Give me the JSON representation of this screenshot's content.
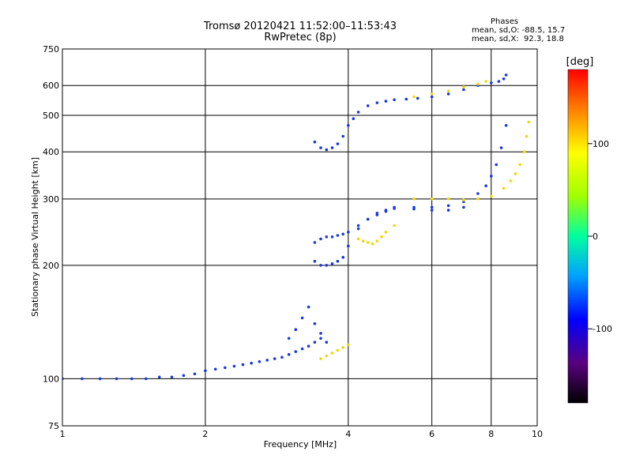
{
  "header": {
    "title_line1": "Tromsø 20120421 11:52:00–11:53:43",
    "title_line2": "RwPretec (8p)"
  },
  "phases": {
    "label": "Phases",
    "line_o": "mean, sd,O: -88.5, 15.7",
    "line_x": "mean, sd,X:  92.3, 18.8"
  },
  "chart_data": {
    "type": "scatter",
    "xlabel": "Frequency [MHz]",
    "ylabel": "Stationary phase Virtual Height [km]",
    "xscale": "log",
    "yscale": "log",
    "xlim": [
      1,
      10
    ],
    "ylim": [
      75,
      750
    ],
    "xticks": [
      1,
      2,
      4,
      6,
      8,
      10
    ],
    "yticks": [
      75,
      100,
      200,
      300,
      400,
      500,
      600,
      750
    ],
    "grid": true,
    "colorbar": {
      "label": "[deg]",
      "range": [
        -180,
        180
      ],
      "ticks": [
        100,
        0,
        -100
      ]
    },
    "series": [
      {
        "phase_deg": -100,
        "x": [
          1.0,
          1.1,
          1.2,
          1.3,
          1.4,
          1.5,
          1.6,
          1.7,
          1.8,
          1.9,
          2.0,
          2.1,
          2.2,
          2.3,
          2.4,
          2.5,
          2.6,
          2.7,
          2.8,
          2.9,
          3.0,
          3.1,
          3.2,
          3.3,
          3.4,
          3.5
        ],
        "y": [
          100,
          100,
          100,
          100,
          100,
          100,
          101,
          101,
          102,
          103,
          105,
          106,
          107,
          108,
          109,
          110,
          111,
          112,
          113,
          114,
          116,
          118,
          120,
          122,
          125,
          128
        ]
      },
      {
        "phase_deg": -100,
        "x": [
          3.4,
          3.5,
          3.6,
          3.7,
          3.8,
          3.9,
          4.0,
          4.1,
          4.2,
          4.4,
          4.6,
          4.8,
          5.0,
          5.3,
          5.6,
          6.0,
          6.5,
          7.0,
          7.5,
          8.0,
          8.3,
          8.5,
          8.6
        ],
        "y": [
          425,
          410,
          405,
          410,
          420,
          440,
          470,
          490,
          510,
          530,
          540,
          545,
          550,
          552,
          555,
          560,
          570,
          585,
          600,
          610,
          615,
          625,
          640
        ]
      },
      {
        "phase_deg": -100,
        "x": [
          3.4,
          3.5,
          3.6,
          3.7,
          3.8,
          3.9,
          4.0,
          4.2,
          4.4,
          4.6,
          4.8,
          5.0,
          5.5,
          6.0,
          6.5,
          7.0,
          7.5,
          7.8,
          8.0,
          8.2,
          8.4,
          8.6
        ],
        "y": [
          205,
          200,
          200,
          202,
          205,
          210,
          225,
          250,
          265,
          275,
          280,
          285,
          285,
          285,
          288,
          295,
          310,
          325,
          345,
          370,
          410,
          470
        ]
      },
      {
        "phase_deg": -100,
        "x": [
          3.4,
          3.5,
          3.6,
          3.7,
          3.8,
          3.9,
          4.0,
          4.2,
          4.4,
          4.6,
          4.8,
          5.0,
          5.5,
          6.0,
          6.5,
          7.0
        ],
        "y": [
          230,
          235,
          238,
          238,
          240,
          242,
          245,
          255,
          265,
          272,
          278,
          283,
          282,
          280,
          280,
          285
        ]
      },
      {
        "phase_deg": -100,
        "x": [
          3.0,
          3.1,
          3.2,
          3.3,
          3.4,
          3.5,
          3.6
        ],
        "y": [
          128,
          135,
          145,
          155,
          140,
          132,
          125
        ]
      },
      {
        "phase_deg": 110,
        "x": [
          3.5,
          3.6,
          3.7,
          3.8,
          3.9,
          4.0
        ],
        "y": [
          113,
          115,
          117,
          119,
          121,
          123
        ]
      },
      {
        "phase_deg": 110,
        "x": [
          4.2,
          4.3,
          4.4,
          4.5,
          4.6,
          4.7,
          4.8,
          5.0
        ],
        "y": [
          235,
          232,
          230,
          228,
          232,
          238,
          245,
          255
        ]
      },
      {
        "phase_deg": 110,
        "x": [
          5.5,
          6.0,
          6.5,
          7.0,
          7.5,
          8.0,
          8.5,
          8.8,
          9.0,
          9.2,
          9.4,
          9.5,
          9.6
        ],
        "y": [
          300,
          300,
          300,
          298,
          300,
          305,
          320,
          335,
          350,
          370,
          400,
          440,
          480
        ]
      },
      {
        "phase_deg": 110,
        "x": [
          5.5,
          6.0,
          6.5,
          7.0,
          7.5,
          7.8
        ],
        "y": [
          560,
          570,
          580,
          595,
          605,
          615
        ]
      }
    ]
  }
}
